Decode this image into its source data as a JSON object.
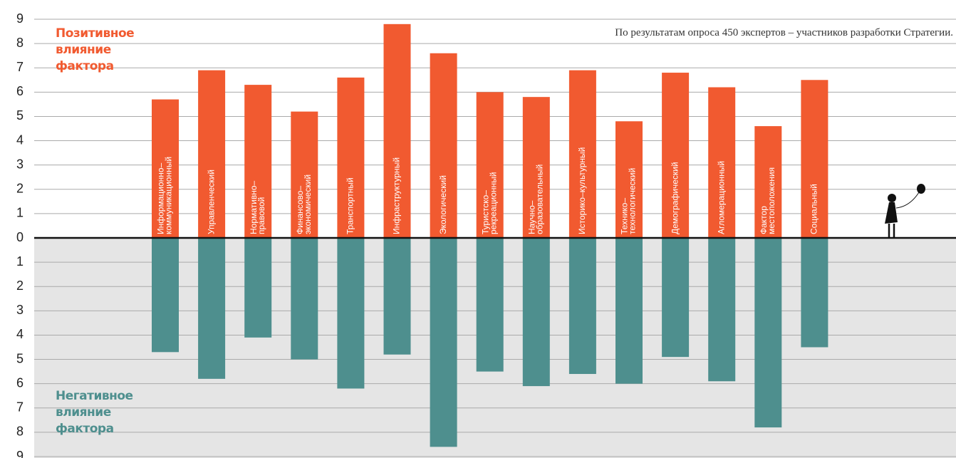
{
  "chart_data": {
    "type": "diverging-bar",
    "note": "По результатам опроса 450 экспертов – участников разработки Стратегии.",
    "categories": [
      [
        "Информационно–",
        "коммуникационный"
      ],
      [
        "Управленческий"
      ],
      [
        "Нормативно–",
        "правовой"
      ],
      [
        "Финансово–",
        "экономический"
      ],
      [
        "Транспортный"
      ],
      [
        "Инфраструктурный"
      ],
      [
        "Экологический"
      ],
      [
        "Туристско–",
        "рекреационный"
      ],
      [
        "Научно–",
        "образовательный"
      ],
      [
        "Историко–культурный"
      ],
      [
        "Технико–",
        "технологический"
      ],
      [
        "Демографический"
      ],
      [
        "Агломерационный"
      ],
      [
        "Фактор",
        "местоположения"
      ],
      [
        "Социальный"
      ]
    ],
    "series": [
      {
        "name": "Позитивное влияние фактора",
        "color": "#f15a30",
        "values": [
          5.7,
          6.9,
          6.3,
          5.2,
          6.6,
          8.8,
          7.6,
          6.0,
          5.8,
          6.9,
          4.8,
          6.8,
          6.2,
          4.6,
          6.5
        ]
      },
      {
        "name": "Негативное влияние фактора",
        "color": "#4e8f8e",
        "values": [
          -4.7,
          -5.8,
          -4.1,
          -5.0,
          -6.2,
          -4.8,
          -8.6,
          -5.5,
          -6.1,
          -5.6,
          -6.0,
          -4.9,
          -5.9,
          -7.8,
          -4.5
        ]
      }
    ],
    "ylim": [
      -9,
      9
    ],
    "yticks": [
      9,
      8,
      7,
      6,
      5,
      4,
      3,
      2,
      1,
      0,
      {
        "value": -1,
        "label": "1"
      },
      {
        "value": -2,
        "label": "2"
      },
      {
        "value": -3,
        "label": "3"
      },
      {
        "value": -4,
        "label": "4"
      },
      {
        "value": -5,
        "label": "5"
      },
      {
        "value": -6,
        "label": "6"
      },
      {
        "value": -7,
        "label": "7"
      },
      {
        "value": -8,
        "label": "8"
      },
      {
        "value": -9,
        "label": "9"
      }
    ],
    "grid": true
  }
}
